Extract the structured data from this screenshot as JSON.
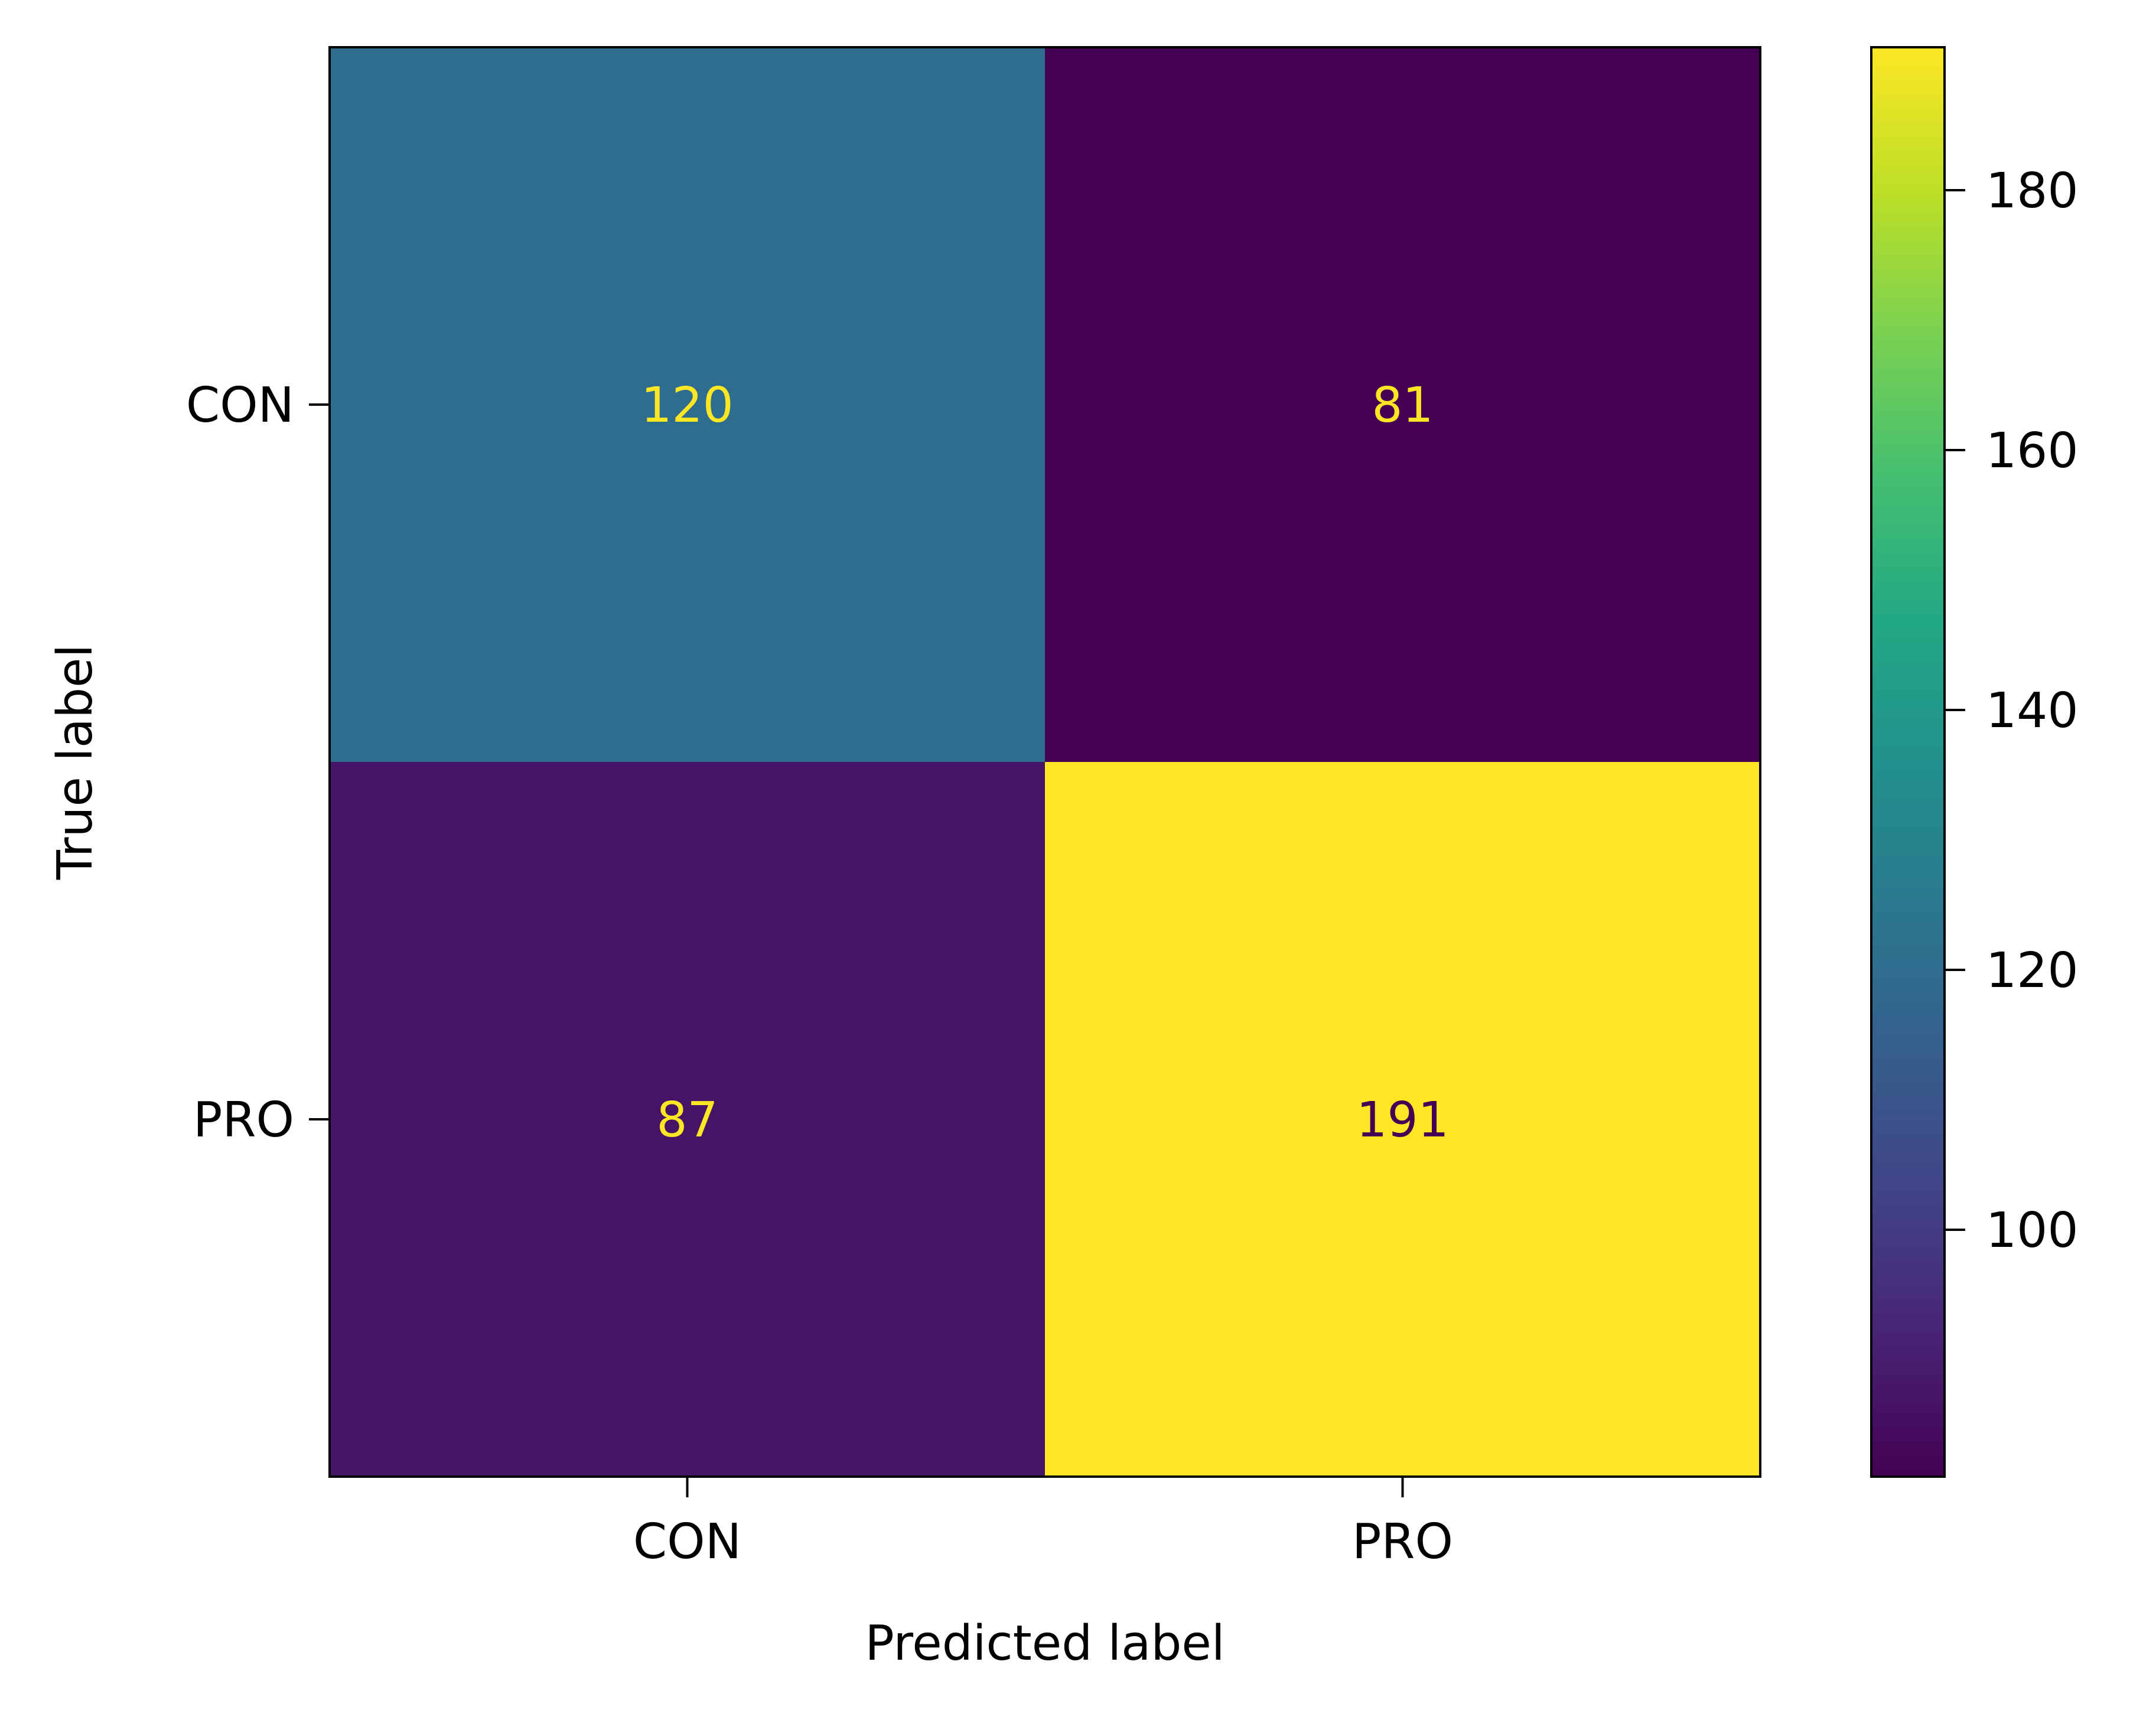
{
  "chart_data": {
    "type": "heatmap",
    "xlabel": "Predicted label",
    "ylabel": "True label",
    "x_categories": [
      "CON",
      "PRO"
    ],
    "y_categories": [
      "CON",
      "PRO"
    ],
    "matrix": [
      [
        120,
        81
      ],
      [
        87,
        191
      ]
    ],
    "colormap": "viridis",
    "color_range": [
      81,
      191
    ],
    "colorbar_ticks": [
      100,
      120,
      140,
      160,
      180
    ],
    "cell_text_colors": {
      "light": "#fde725",
      "dark": "#440154"
    },
    "grid": false
  }
}
